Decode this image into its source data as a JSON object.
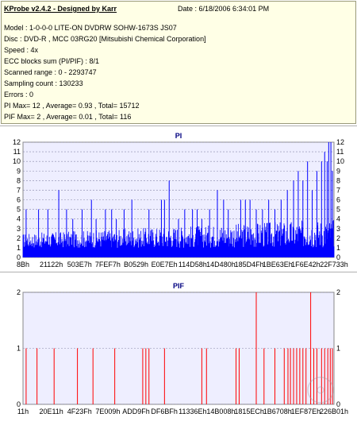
{
  "header": {
    "title": "KProbe v2.4.2 - Designed by Karr",
    "date": "Date : 6/18/2006 6:34:01 PM",
    "lines": [
      "Model : 1-0-0-0 LITE-ON DVDRW SOHW-1673S JS07",
      "Disc : DVD-R , MCC 03RG20  [Mitsubishi Chemical Corporation]",
      "Speed : 4x",
      "ECC blocks sum (PI/PIF) : 8/1",
      "Scanned range : 0 - 2293747",
      "Sampling count : 130233",
      "Errors : 0",
      "PI Max= 12 , Average= 0.93 , Total= 15712",
      "PIF Max= 2 , Average= 0.01 , Total= 116"
    ]
  },
  "colors": {
    "pi_bars": "#0000ff",
    "pif_bars": "#ff0000",
    "plot_bg": "#eeeeff",
    "grid": "#8888aa",
    "title": "#000080"
  },
  "chart_data": [
    {
      "type": "bar",
      "title": "PI",
      "ylim": [
        0,
        12
      ],
      "yticks": [
        0,
        1,
        2,
        3,
        4,
        5,
        6,
        7,
        8,
        9,
        10,
        11,
        12
      ],
      "xticks": [
        "8Bh",
        "21122h",
        "503E7h",
        "7FEF7h",
        "B0529h",
        "E0E7Eh",
        "114D58h",
        "14D480h",
        "185D4Fh",
        "1BE63Eh",
        "1F6E42h",
        "22F733h"
      ],
      "baseline": 1,
      "noise_max": 4,
      "spikes": [
        {
          "x": 0.01,
          "y": 5
        },
        {
          "x": 0.05,
          "y": 5
        },
        {
          "x": 0.08,
          "y": 5
        },
        {
          "x": 0.115,
          "y": 7
        },
        {
          "x": 0.14,
          "y": 5
        },
        {
          "x": 0.16,
          "y": 4
        },
        {
          "x": 0.19,
          "y": 5
        },
        {
          "x": 0.22,
          "y": 6
        },
        {
          "x": 0.235,
          "y": 4
        },
        {
          "x": 0.265,
          "y": 5
        },
        {
          "x": 0.285,
          "y": 5
        },
        {
          "x": 0.3,
          "y": 4
        },
        {
          "x": 0.325,
          "y": 5
        },
        {
          "x": 0.35,
          "y": 6
        },
        {
          "x": 0.405,
          "y": 5
        },
        {
          "x": 0.445,
          "y": 6
        },
        {
          "x": 0.455,
          "y": 6
        },
        {
          "x": 0.47,
          "y": 8
        },
        {
          "x": 0.5,
          "y": 4
        },
        {
          "x": 0.52,
          "y": 5
        },
        {
          "x": 0.545,
          "y": 5
        },
        {
          "x": 0.56,
          "y": 5
        },
        {
          "x": 0.575,
          "y": 4
        },
        {
          "x": 0.6,
          "y": 5
        },
        {
          "x": 0.625,
          "y": 7
        },
        {
          "x": 0.645,
          "y": 6
        },
        {
          "x": 0.66,
          "y": 5
        },
        {
          "x": 0.7,
          "y": 6
        },
        {
          "x": 0.715,
          "y": 6
        },
        {
          "x": 0.73,
          "y": 6
        },
        {
          "x": 0.75,
          "y": 5
        },
        {
          "x": 0.77,
          "y": 5
        },
        {
          "x": 0.79,
          "y": 6
        },
        {
          "x": 0.81,
          "y": 5
        },
        {
          "x": 0.83,
          "y": 6
        },
        {
          "x": 0.85,
          "y": 7
        },
        {
          "x": 0.87,
          "y": 8
        },
        {
          "x": 0.885,
          "y": 9
        },
        {
          "x": 0.9,
          "y": 8
        },
        {
          "x": 0.915,
          "y": 10
        },
        {
          "x": 0.93,
          "y": 7
        },
        {
          "x": 0.945,
          "y": 9
        },
        {
          "x": 0.96,
          "y": 10
        },
        {
          "x": 0.97,
          "y": 11
        },
        {
          "x": 0.978,
          "y": 10
        },
        {
          "x": 0.983,
          "y": 12
        },
        {
          "x": 0.99,
          "y": 12
        },
        {
          "x": 0.995,
          "y": 9
        }
      ]
    },
    {
      "type": "bar",
      "title": "PIF",
      "ylim": [
        0,
        2
      ],
      "yticks": [
        0,
        1,
        2
      ],
      "xticks": [
        "11h",
        "20E11h",
        "4F23Fh",
        "7E009h",
        "ADD9Fh",
        "DF6BFh",
        "11336Eh",
        "14B008h",
        "1815ECh",
        "1B6708h",
        "1EF87Eh",
        "226B01h"
      ],
      "bars": [
        {
          "x": 0.01,
          "y": 1
        },
        {
          "x": 0.045,
          "y": 1
        },
        {
          "x": 0.1,
          "y": 1
        },
        {
          "x": 0.175,
          "y": 1
        },
        {
          "x": 0.225,
          "y": 1
        },
        {
          "x": 0.295,
          "y": 1
        },
        {
          "x": 0.385,
          "y": 1
        },
        {
          "x": 0.395,
          "y": 1
        },
        {
          "x": 0.405,
          "y": 1
        },
        {
          "x": 0.455,
          "y": 1
        },
        {
          "x": 0.575,
          "y": 1
        },
        {
          "x": 0.59,
          "y": 1
        },
        {
          "x": 0.685,
          "y": 1
        },
        {
          "x": 0.695,
          "y": 1
        },
        {
          "x": 0.75,
          "y": 2
        },
        {
          "x": 0.775,
          "y": 1
        },
        {
          "x": 0.81,
          "y": 1
        },
        {
          "x": 0.84,
          "y": 1
        },
        {
          "x": 0.852,
          "y": 1
        },
        {
          "x": 0.86,
          "y": 1
        },
        {
          "x": 0.87,
          "y": 1
        },
        {
          "x": 0.88,
          "y": 1
        },
        {
          "x": 0.89,
          "y": 1
        },
        {
          "x": 0.9,
          "y": 1
        },
        {
          "x": 0.91,
          "y": 1
        },
        {
          "x": 0.925,
          "y": 2
        },
        {
          "x": 0.935,
          "y": 1
        },
        {
          "x": 0.945,
          "y": 1
        },
        {
          "x": 0.96,
          "y": 1
        },
        {
          "x": 0.97,
          "y": 1
        },
        {
          "x": 0.98,
          "y": 1
        },
        {
          "x": 0.988,
          "y": 1
        },
        {
          "x": 0.995,
          "y": 1
        }
      ]
    }
  ]
}
